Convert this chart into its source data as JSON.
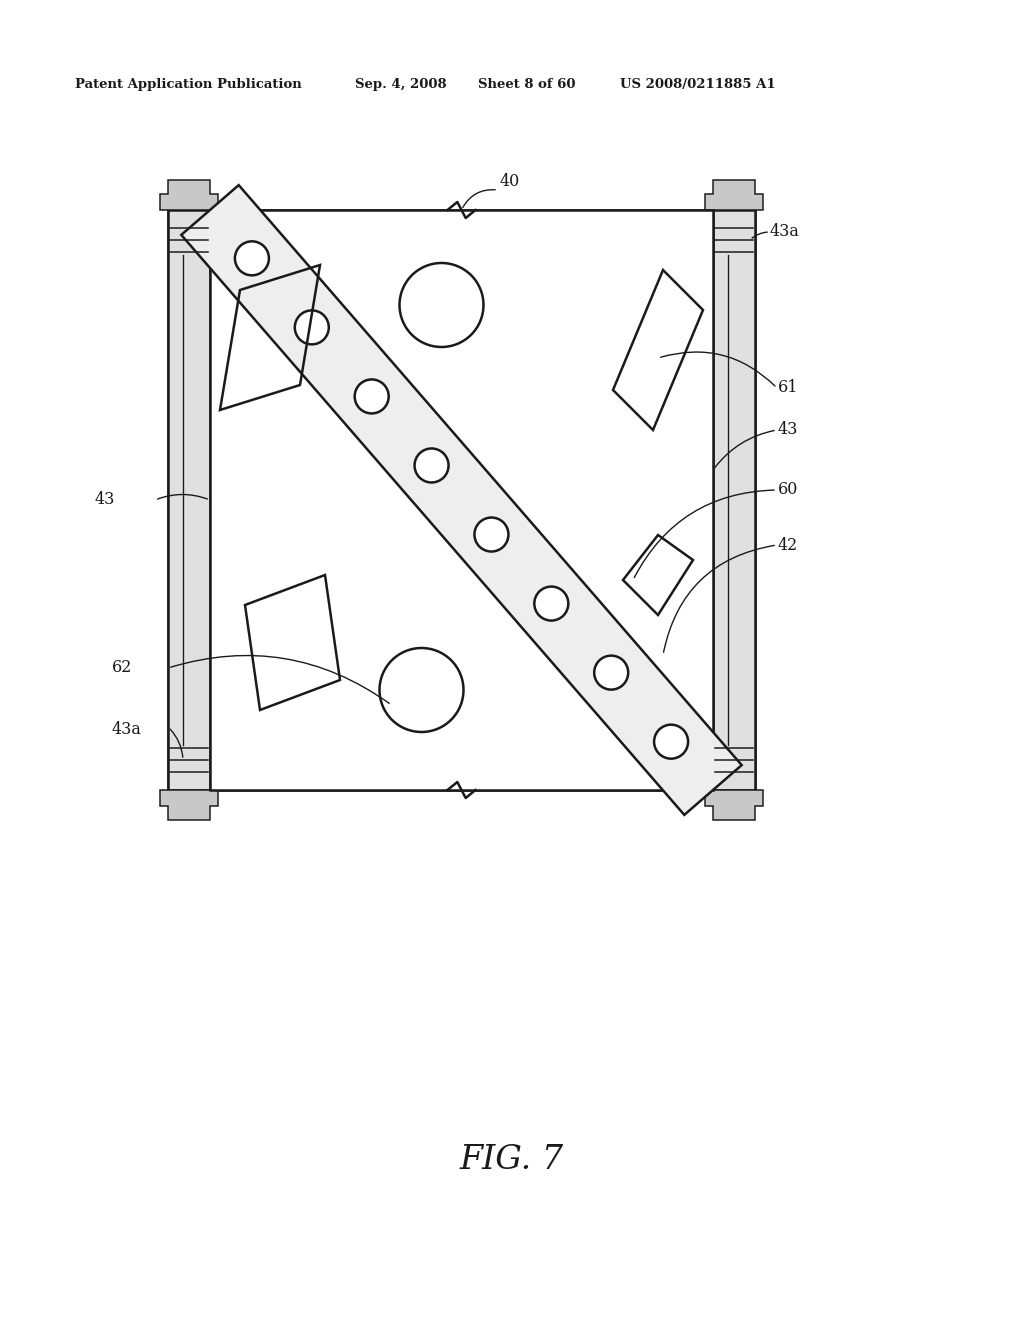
{
  "bg_color": "#ffffff",
  "line_color": "#1a1a1a",
  "header_text": "Patent Application Publication",
  "header_date": "Sep. 4, 2008",
  "header_sheet": "Sheet 8 of 60",
  "header_patent": "US 2008/0211885 A1",
  "fig_label": "FIG. 7",
  "col_fill": "#e0e0e0",
  "band_fill": "#eeeeee"
}
